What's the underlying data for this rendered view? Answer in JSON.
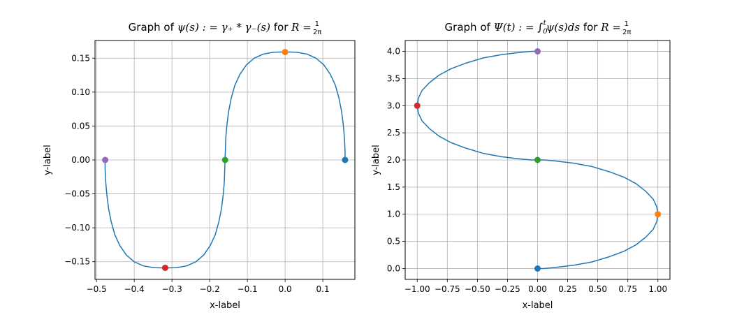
{
  "chart_data": [
    {
      "type": "line",
      "title": {
        "text": "Graph of ψ(s) : = γ₊ * γ₋(s) for R = 1/(2π)",
        "prefix": "Graph of ",
        "math": "ψ(s) : = γ₊ * γ₋(s)",
        "mid": " for ",
        "math2": "R =",
        "frac_num": "1",
        "frac_den": "2π"
      },
      "xlabel": "x-label",
      "ylabel": "y-label",
      "xlim": [
        -0.504,
        0.185
      ],
      "ylim": [
        -0.176,
        0.176
      ],
      "xticks": [
        -0.5,
        -0.4,
        -0.3,
        -0.2,
        -0.1,
        0.0,
        0.1
      ],
      "xtick_labels": [
        "−0.5",
        "−0.4",
        "−0.3",
        "−0.2",
        "−0.1",
        "0.0",
        "0.1"
      ],
      "yticks": [
        -0.15,
        -0.1,
        -0.05,
        0.0,
        0.05,
        0.1,
        0.15
      ],
      "ytick_labels": [
        "−0.15",
        "−0.10",
        "−0.05",
        "0.00",
        "0.05",
        "0.10",
        "0.15"
      ],
      "grid": true,
      "series": [
        {
          "color": "#1f77b4",
          "x": [
            0.1592,
            0.1588,
            0.1572,
            0.1542,
            0.1496,
            0.1428,
            0.1333,
            0.12,
            0.1027,
            0.082,
            0.058,
            0.03,
            0.0,
            -0.03,
            -0.058,
            -0.082,
            -0.1027,
            -0.12,
            -0.1333,
            -0.1428,
            -0.1496,
            -0.1542,
            -0.1572,
            -0.1592,
            -0.1612,
            -0.1642,
            -0.1688,
            -0.1756,
            -0.1851,
            -0.1984,
            -0.2157,
            -0.2364,
            -0.2604,
            -0.2884,
            -0.3183,
            -0.3483,
            -0.3763,
            -0.4003,
            -0.421,
            -0.4383,
            -0.4516,
            -0.4611,
            -0.4679,
            -0.4725,
            -0.4755,
            -0.4771,
            -0.4775
          ],
          "y": [
            0.0,
            0.015,
            0.033,
            0.052,
            0.072,
            0.091,
            0.11,
            0.126,
            0.14,
            0.15,
            0.156,
            0.1588,
            0.1592,
            0.1588,
            0.156,
            0.15,
            0.14,
            0.126,
            0.11,
            0.091,
            0.072,
            0.052,
            0.033,
            0.0,
            -0.033,
            -0.052,
            -0.072,
            -0.091,
            -0.11,
            -0.126,
            -0.14,
            -0.15,
            -0.156,
            -0.1588,
            -0.1592,
            -0.1588,
            -0.156,
            -0.15,
            -0.14,
            -0.126,
            -0.11,
            -0.091,
            -0.072,
            -0.052,
            -0.033,
            -0.015,
            0.0
          ]
        }
      ],
      "markers": [
        {
          "x": 0.159,
          "y": 0.0,
          "color": "#1f77b4"
        },
        {
          "x": 0.0,
          "y": 0.159,
          "color": "#ff7f0e"
        },
        {
          "x": -0.159,
          "y": 0.0,
          "color": "#2ca02c"
        },
        {
          "x": -0.318,
          "y": -0.159,
          "color": "#d62728"
        },
        {
          "x": -0.477,
          "y": 0.0,
          "color": "#9467bd"
        }
      ]
    },
    {
      "type": "line",
      "title": {
        "text": "Graph of Ψ(t) : = ∫₀ᵗ ψ(s)ds for R = 1/(2π)",
        "prefix": "Graph of ",
        "math": "Ψ(t) : = ∫",
        "int_lower": "0",
        "int_upper": "t",
        "math_after": "ψ(s)ds",
        "mid": " for ",
        "math2": "R =",
        "frac_num": "1",
        "frac_den": "2π"
      },
      "xlabel": "x-label",
      "ylabel": "y-label",
      "xlim": [
        -1.1,
        1.1
      ],
      "ylim": [
        -0.2,
        4.2
      ],
      "xticks": [
        -1.0,
        -0.75,
        -0.5,
        -0.25,
        0.0,
        0.25,
        0.5,
        0.75,
        1.0
      ],
      "xtick_labels": [
        "−1.00",
        "−0.75",
        "−0.50",
        "−0.25",
        "0.00",
        "0.25",
        "0.50",
        "0.75",
        "1.00"
      ],
      "yticks": [
        0.0,
        0.5,
        1.0,
        1.5,
        2.0,
        2.5,
        3.0,
        3.5,
        4.0
      ],
      "ytick_labels": [
        "0.0",
        "0.5",
        "1.0",
        "1.5",
        "2.0",
        "2.5",
        "3.0",
        "3.5",
        "4.0"
      ],
      "grid": true,
      "series": [
        {
          "color": "#1f77b4",
          "x": [
            0.0,
            0.05,
            0.15,
            0.3,
            0.45,
            0.6,
            0.72,
            0.82,
            0.9,
            0.96,
            0.99,
            1.0,
            0.99,
            0.96,
            0.9,
            0.82,
            0.72,
            0.6,
            0.45,
            0.3,
            0.15,
            0.05,
            0.0,
            -0.05,
            -0.15,
            -0.3,
            -0.45,
            -0.6,
            -0.72,
            -0.82,
            -0.9,
            -0.96,
            -0.99,
            -1.0,
            -0.99,
            -0.96,
            -0.9,
            -0.82,
            -0.72,
            -0.6,
            -0.45,
            -0.3,
            -0.15,
            -0.05,
            0.0
          ],
          "y": [
            0.0,
            0.0,
            0.02,
            0.06,
            0.12,
            0.22,
            0.32,
            0.44,
            0.58,
            0.72,
            0.86,
            1.0,
            1.14,
            1.28,
            1.42,
            1.56,
            1.68,
            1.78,
            1.88,
            1.94,
            1.98,
            2.0,
            2.0,
            2.0,
            2.02,
            2.06,
            2.12,
            2.22,
            2.32,
            2.44,
            2.58,
            2.72,
            2.86,
            3.0,
            3.14,
            3.28,
            3.42,
            3.56,
            3.68,
            3.78,
            3.88,
            3.94,
            3.98,
            4.0,
            4.0
          ]
        }
      ],
      "markers": [
        {
          "x": 0.0,
          "y": 0.0,
          "color": "#1f77b4"
        },
        {
          "x": 1.0,
          "y": 1.0,
          "color": "#ff7f0e"
        },
        {
          "x": 0.0,
          "y": 2.0,
          "color": "#2ca02c"
        },
        {
          "x": -1.0,
          "y": 3.0,
          "color": "#d62728"
        },
        {
          "x": 0.0,
          "y": 4.0,
          "color": "#9467bd"
        }
      ]
    }
  ]
}
